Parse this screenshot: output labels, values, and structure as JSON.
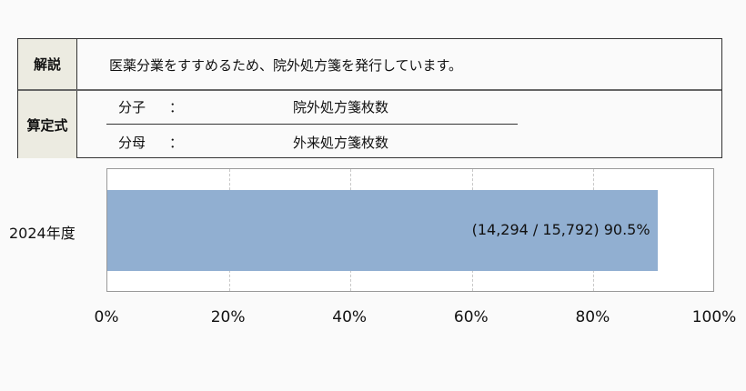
{
  "table": {
    "explanation_label": "解説",
    "explanation_text": "医薬分業をすすめるため、院外処方箋を発行しています。",
    "formula_label": "算定式",
    "numerator_label": "分子",
    "numerator_colon": "：",
    "numerator_text": "院外処方箋枚数",
    "denominator_label": "分母",
    "denominator_colon": "：",
    "denominator_text": "外来処方箋枚数"
  },
  "chart_data": {
    "type": "bar",
    "orientation": "horizontal",
    "categories": [
      "2024年度"
    ],
    "values": [
      90.5
    ],
    "data_labels": [
      "(14,294 / 15,792)  90.5%"
    ],
    "numerator": "14,294",
    "denominator": "15,792",
    "value_label": "90.5%",
    "xlim": [
      0,
      100
    ],
    "x_ticks": [
      "0%",
      "20%",
      "40%",
      "60%",
      "80%",
      "100%"
    ],
    "grid": true,
    "bar_color": "#91afd1"
  }
}
